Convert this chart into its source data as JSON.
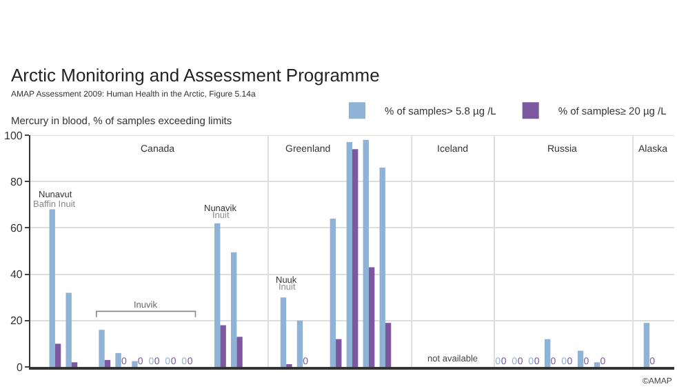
{
  "chart_data": {
    "type": "bar",
    "title": "Arctic Monitoring and Assessment Programme",
    "subtitle": "AMAP Assessment 2009: Human Health in the Arctic, Figure 5.14a",
    "ylabel": "Mercury in blood, % of samples exceeding limits",
    "categories": [
      null,
      null,
      null,
      null,
      null,
      null,
      null,
      null,
      null,
      null,
      null,
      null,
      null,
      null,
      null,
      null,
      null,
      null,
      null,
      null,
      null,
      null,
      null,
      null,
      null,
      null,
      null,
      null,
      null,
      null,
      null,
      null,
      null,
      null,
      null,
      null,
      null,
      null,
      null
    ],
    "series": [
      {
        "name": "% of samples> 5.8 µg /L",
        "color": "#8fb3d6",
        "values": [
          null,
          68,
          32,
          null,
          16,
          6,
          2.5,
          0,
          0,
          0,
          null,
          62,
          49.5,
          null,
          null,
          30,
          20,
          null,
          64,
          97,
          98,
          86,
          null,
          null,
          null,
          null,
          null,
          null,
          0,
          0,
          0,
          12,
          0,
          7,
          2,
          null,
          null,
          19,
          null
        ],
        "value_labels": [
          null,
          null,
          null,
          null,
          null,
          null,
          null,
          "0",
          "0",
          "0",
          null,
          null,
          null,
          null,
          null,
          null,
          null,
          null,
          null,
          null,
          null,
          null,
          null,
          null,
          null,
          null,
          null,
          null,
          "0",
          "0",
          "0",
          null,
          "0",
          null,
          null,
          null,
          null,
          null,
          null
        ]
      },
      {
        "name": "% of samples≥ 20 µg /L",
        "color": "#7e57a1",
        "values": [
          null,
          10,
          2,
          null,
          3,
          0,
          0,
          0,
          0,
          0,
          null,
          18,
          13,
          null,
          null,
          1,
          0,
          null,
          12,
          94,
          43,
          19,
          null,
          null,
          null,
          null,
          null,
          null,
          0,
          0,
          0,
          0,
          0,
          0,
          0,
          null,
          null,
          0,
          null
        ],
        "value_labels": [
          null,
          null,
          null,
          null,
          null,
          "0",
          "0",
          "0",
          "0",
          "0",
          null,
          null,
          null,
          null,
          null,
          null,
          "0",
          null,
          null,
          null,
          null,
          null,
          null,
          null,
          null,
          null,
          null,
          null,
          "0",
          "0",
          "0",
          "0",
          "0",
          "0",
          "0",
          null,
          null,
          "0",
          null
        ]
      }
    ],
    "ylim": [
      0,
      100
    ],
    "yticks": [
      0,
      20,
      40,
      60,
      80,
      100
    ],
    "grid": "y",
    "legend": "top right",
    "annotations": [
      "Canada",
      "Greenland",
      "Iceland",
      "Russia",
      "Alaska",
      "Nunavut",
      "Baffin Inuit",
      "Nunavik",
      "Inuit",
      "Nuuk",
      "Inuit",
      "Inuvik",
      "not available",
      "©AMAP"
    ]
  }
}
